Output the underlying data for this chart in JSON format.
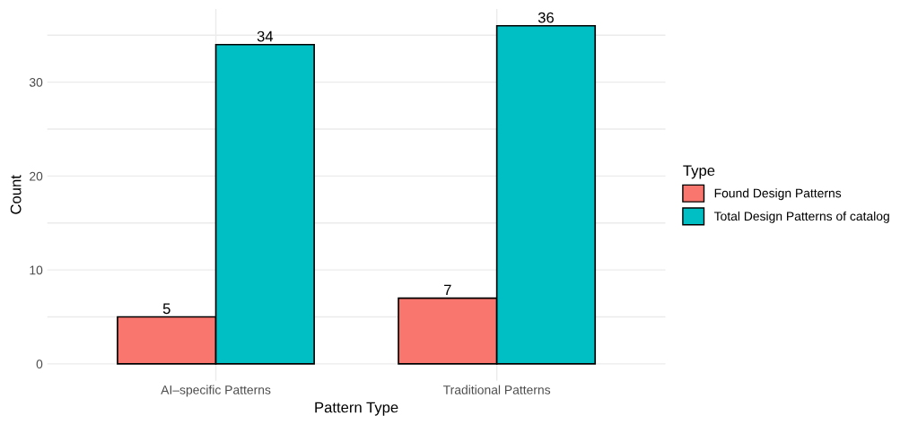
{
  "chart_data": {
    "type": "bar",
    "xlabel": "Pattern Type",
    "ylabel": "Count",
    "legend_title": "Type",
    "categories": [
      "AI–specific Patterns",
      "Traditional Patterns"
    ],
    "series": [
      {
        "name": "Found Design Patterns",
        "color": "#f8766d",
        "values": [
          5,
          7
        ]
      },
      {
        "name": "Total Design Patterns of catalog",
        "color": "#00bfc4",
        "values": [
          34,
          36
        ]
      }
    ],
    "ylim": [
      -1.8,
      37.8
    ],
    "yticks": [
      0,
      {
        "value": 5,
        "label": null
      },
      10,
      {
        "value": 15,
        "label": null
      },
      20,
      {
        "value": 25,
        "label": null
      },
      30,
      {
        "value": 35,
        "label": null
      }
    ],
    "grid": true,
    "legend": "right",
    "data_labels": true
  }
}
